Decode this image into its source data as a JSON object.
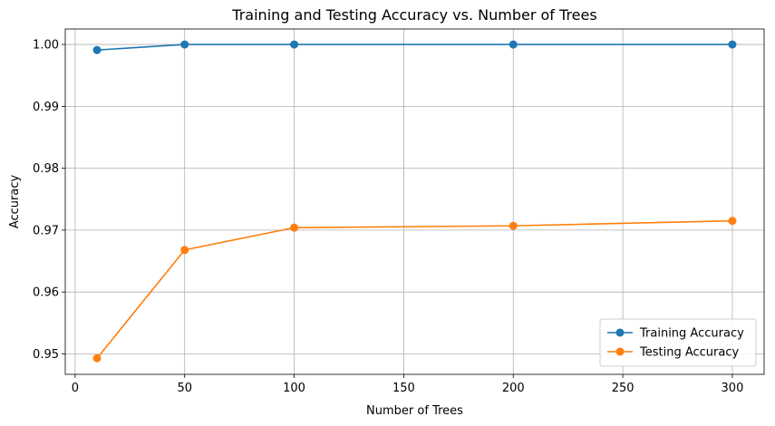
{
  "chart_data": {
    "type": "line",
    "title": "Training and Testing Accuracy vs. Number of Trees",
    "xlabel": "Number of Trees",
    "ylabel": "Accuracy",
    "x": [
      10,
      50,
      100,
      200,
      300
    ],
    "series": [
      {
        "name": "Training Accuracy",
        "color": "#1f77b4",
        "values": [
          0.9991,
          1.0,
          1.0,
          1.0,
          1.0
        ]
      },
      {
        "name": "Testing Accuracy",
        "color": "#ff7f0e",
        "values": [
          0.9493,
          0.9668,
          0.9704,
          0.9707,
          0.9715
        ]
      }
    ],
    "xlim": [
      -4.5,
      314.5
    ],
    "ylim": [
      0.9467,
      1.0025
    ],
    "xticks": [
      0,
      50,
      100,
      150,
      200,
      250,
      300
    ],
    "xtick_labels": [
      "0",
      "50",
      "100",
      "150",
      "200",
      "250",
      "300"
    ],
    "yticks": [
      0.95,
      0.96,
      0.97,
      0.98,
      0.99,
      1.0
    ],
    "ytick_labels": [
      "0.95",
      "0.96",
      "0.97",
      "0.98",
      "0.99",
      "1.00"
    ],
    "grid": true,
    "legend_position": "lower-right",
    "marker": "circle"
  }
}
